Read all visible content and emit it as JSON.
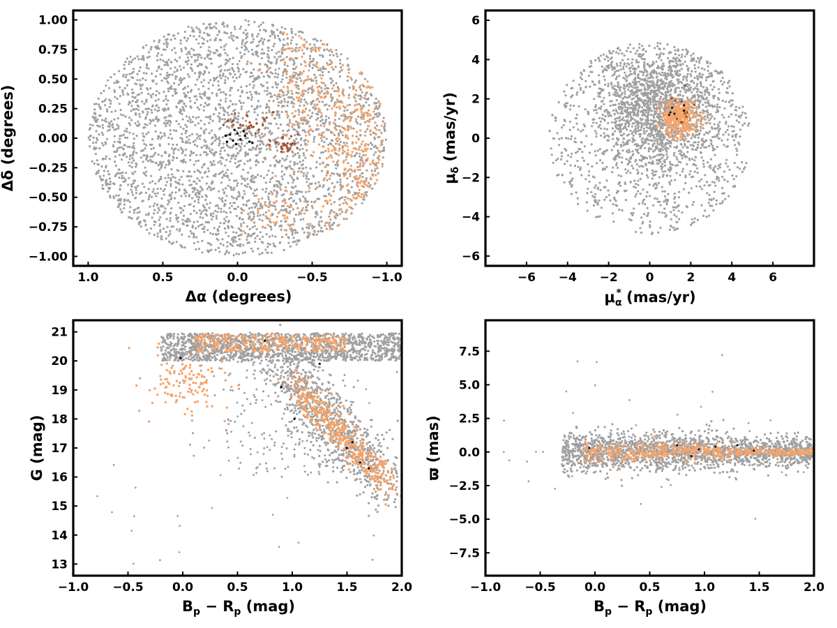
{
  "colors": {
    "field_stars": "#a0a0a0",
    "members": "#f6a46a",
    "substructure": "#a0522d",
    "core": "#000000",
    "frame": "#000000"
  },
  "chart_data": [
    {
      "id": "sky",
      "type": "scatter",
      "xlabel_main": "Δα",
      "xlabel_unit": " (degrees)",
      "ylabel_main": "Δδ",
      "ylabel_unit": " (degrees)",
      "xlim": [
        1.1,
        -1.1
      ],
      "ylim": [
        -1.08,
        1.08
      ],
      "x_inverted": true,
      "xticks": [
        1.0,
        0.5,
        0.0,
        -0.5,
        -1.0
      ],
      "xtick_labels": [
        "1.0",
        "0.5",
        "0.0",
        "−0.5",
        "−1.0"
      ],
      "yticks": [
        1.0,
        0.75,
        0.5,
        0.25,
        0.0,
        -0.25,
        -0.5,
        -0.75,
        -1.0
      ],
      "ytick_labels": [
        "1.00",
        "0.75",
        "0.50",
        "0.25",
        "0.00",
        "−0.25",
        "−0.50",
        "−0.75",
        "−1.00"
      ],
      "field_extent": {
        "shape": "disk",
        "radius": 1.0
      },
      "member_regions": [
        {
          "center": [
            -0.78,
            0.0
          ],
          "spread": [
            0.16,
            0.5
          ]
        },
        {
          "center": [
            -0.45,
            0.45
          ],
          "spread": [
            0.12,
            0.25
          ]
        },
        {
          "center": [
            -0.3,
            -0.6
          ],
          "spread": [
            0.1,
            0.12
          ]
        }
      ],
      "core_points": [
        [
          0.05,
          0.03
        ],
        [
          0.03,
          -0.02
        ],
        [
          0.0,
          0.04
        ],
        [
          -0.02,
          -0.01
        ],
        [
          -0.05,
          0.02
        ],
        [
          0.07,
          -0.03
        ],
        [
          -0.08,
          -0.03
        ],
        [
          0.02,
          0.07
        ],
        [
          -0.04,
          0.06
        ],
        [
          0.08,
          0.02
        ],
        [
          -0.1,
          -0.04
        ],
        [
          0.01,
          -0.05
        ]
      ]
    },
    {
      "id": "proper-motion",
      "type": "scatter",
      "xlabel_main": "μ",
      "xlabel_sub": "α",
      "xlabel_sup": "*",
      "xlabel_unit": "  (mas/yr)",
      "ylabel_main": "μ",
      "ylabel_sub": "δ",
      "ylabel_unit": " (mas/yr)",
      "xlim": [
        -8,
        8
      ],
      "ylim": [
        -6.5,
        6.5
      ],
      "xticks": [
        -6,
        -4,
        -2,
        0,
        2,
        4,
        6
      ],
      "xtick_labels": [
        "−6",
        "−4",
        "−2",
        "0",
        "2",
        "4",
        "6"
      ],
      "yticks": [
        6,
        4,
        2,
        0,
        -2,
        -4,
        -6
      ],
      "ytick_labels": [
        "6",
        "4",
        "2",
        "0",
        "−2",
        "−4",
        "−6"
      ],
      "field_extent": {
        "shape": "disk",
        "center": [
          0,
          0
        ],
        "radius": 4.9
      },
      "field_concentration": {
        "center": [
          0.4,
          1.5
        ],
        "spread": [
          1.4,
          1.6
        ]
      },
      "member_regions": [
        {
          "center": [
            1.5,
            1.0
          ],
          "spread": [
            0.45,
            0.45
          ]
        }
      ]
    },
    {
      "id": "cmd",
      "type": "scatter",
      "xlabel_main": "B",
      "xlabel_sub": "p",
      "xlabel_mid": " − R",
      "xlabel_sub2": "p",
      "xlabel_unit": " (mag)",
      "ylabel_main": "G",
      "ylabel_unit": " (mag)",
      "xlim": [
        -1.0,
        2.0
      ],
      "ylim": [
        12.6,
        21.4
      ],
      "xticks": [
        -1.0,
        -0.5,
        0.0,
        0.5,
        1.0,
        1.5,
        2.0
      ],
      "xtick_labels": [
        "−1.0",
        "−0.5",
        "0.0",
        "0.5",
        "1.0",
        "1.5",
        "2.0"
      ],
      "yticks": [
        21,
        20,
        19,
        18,
        17,
        16,
        15,
        14,
        13
      ],
      "ytick_labels": [
        "21",
        "20",
        "19",
        "18",
        "17",
        "16",
        "15",
        "14",
        "13"
      ],
      "sequence": {
        "color_range": [
          1.0,
          1.9
        ],
        "mag_range": [
          19.2,
          15.7
        ]
      }
    },
    {
      "id": "parallax",
      "type": "scatter",
      "xlabel_main": "B",
      "xlabel_sub": "p",
      "xlabel_mid": " − R",
      "xlabel_sub2": "p",
      "xlabel_unit": " (mag)",
      "ylabel_main": "ϖ",
      "ylabel_unit": " (mas)",
      "xlim": [
        -1.0,
        2.0
      ],
      "ylim": [
        -9.2,
        9.8
      ],
      "xticks": [
        -1.0,
        -0.5,
        0.0,
        0.5,
        1.0,
        1.5,
        2.0
      ],
      "xtick_labels": [
        "−1.0",
        "−0.5",
        "0.0",
        "0.5",
        "1.0",
        "1.5",
        "2.0"
      ],
      "yticks": [
        7.5,
        5.0,
        2.5,
        0.0,
        -2.5,
        -5.0,
        -7.5
      ],
      "ytick_labels": [
        "7.5",
        "5.0",
        "2.5",
        "0.0",
        "−2.5",
        "−5.0",
        "−7.5"
      ],
      "parallax_center": 0.0
    }
  ]
}
